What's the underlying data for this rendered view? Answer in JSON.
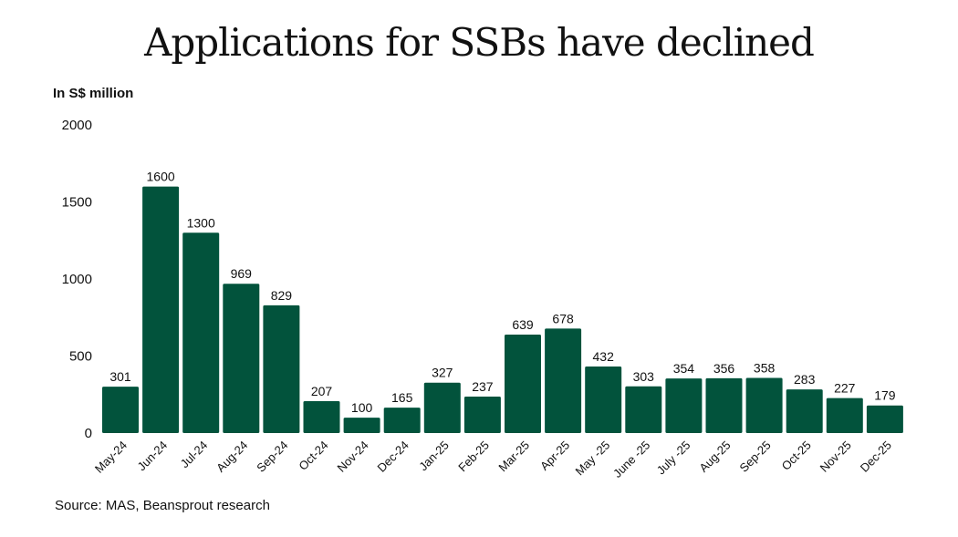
{
  "chart_data": {
    "type": "bar",
    "title": "Applications for SSBs have declined",
    "ylabel": "In S$ million",
    "source": "Source: MAS, Beansprout research",
    "ylim": [
      0,
      2000
    ],
    "yticks": [
      0,
      500,
      1000,
      1500,
      2000
    ],
    "grid": false,
    "bar_color": "#02533c",
    "categories": [
      "May-24",
      "Jun-24",
      "Jul-24",
      "Aug-24",
      "Sep-24",
      "Oct-24",
      "Nov-24",
      "Dec-24",
      "Jan-25",
      "Feb-25",
      "Mar-25",
      "Apr-25",
      "May -25",
      "June -25",
      "July -25",
      "Aug-25",
      "Sep-25",
      "Oct-25",
      "Nov-25",
      "Dec-25"
    ],
    "values": [
      301,
      1600,
      1300,
      969,
      829,
      207,
      100,
      165,
      327,
      237,
      639,
      678,
      432,
      303,
      354,
      356,
      358,
      283,
      227,
      179
    ]
  }
}
